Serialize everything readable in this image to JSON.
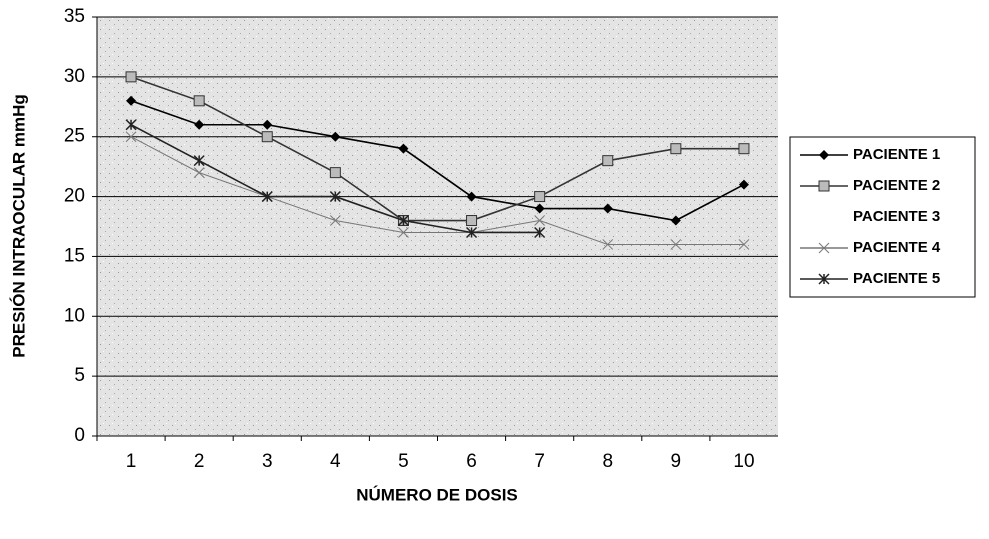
{
  "chart_data": {
    "type": "line",
    "x_label": "NÚMERO DE DOSIS",
    "y_label": "PRESIÓN INTRAOCULAR mmHg",
    "categories": [
      "1",
      "2",
      "3",
      "4",
      "5",
      "6",
      "7",
      "8",
      "9",
      "10"
    ],
    "ylim": [
      0,
      35
    ],
    "yticks": [
      0,
      5,
      10,
      15,
      20,
      25,
      30,
      35
    ],
    "grid": true,
    "legend": "right",
    "series": [
      {
        "name": "PACIENTE 1",
        "color": "#000000",
        "marker": "diamond",
        "values": [
          28,
          26,
          26,
          25,
          24,
          20,
          19,
          19,
          18,
          21
        ]
      },
      {
        "name": "PACIENTE 2",
        "color": "#333333",
        "marker": "square",
        "values": [
          30,
          28,
          25,
          22,
          18,
          18,
          20,
          23,
          24,
          24
        ]
      },
      {
        "name": "PACIENTE 3",
        "color": "none",
        "marker": "none",
        "values": [
          null,
          null,
          null,
          null,
          null,
          null,
          null,
          null,
          null,
          null
        ]
      },
      {
        "name": "PACIENTE 4",
        "color": "#777777",
        "marker": "x",
        "values": [
          25,
          22,
          20,
          18,
          17,
          17,
          18,
          16,
          16,
          16
        ]
      },
      {
        "name": "PACIENTE 5",
        "color": "#222222",
        "marker": "star",
        "values": [
          26,
          23,
          20,
          20,
          18,
          17,
          17,
          null,
          null,
          null
        ]
      }
    ]
  }
}
